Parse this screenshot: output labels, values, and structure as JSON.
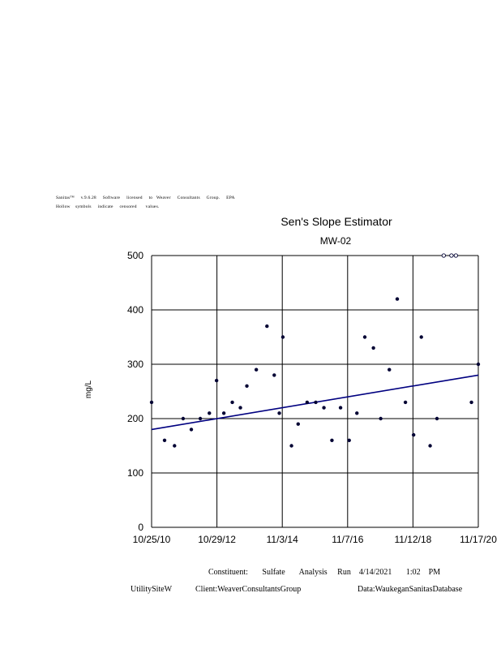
{
  "header": {
    "line1": "Sanitas™     v.9.6.28     Software     licensed     to   Weaver     Consultants     Group.     EPA",
    "line2": "Hollow    symbols     indicate     censored       values."
  },
  "footer": {
    "line1": "Constituent:       Sulfate       Analysis     Run    4/14/2021       1:02    PM",
    "site": "UtilitySiteW",
    "client": "Client:WeaverConsultantsGroup",
    "data": "Data:WaukeganSanitasDatabase"
  },
  "chart_data": {
    "type": "scatter",
    "title": "Sen's Slope Estimator",
    "subtitle": "MW-02",
    "xlabel": "",
    "ylabel": "mg/L",
    "xlim": [
      "2010-10-25",
      "2020-11-17"
    ],
    "ylim": [
      0,
      500
    ],
    "x_ticks": [
      "10/25/10",
      "10/29/12",
      "11/3/14",
      "11/7/16",
      "11/12/18",
      "11/17/20"
    ],
    "y_ticks": [
      0,
      100,
      200,
      300,
      400,
      500
    ],
    "grid": true,
    "colors": {
      "points": "#000033",
      "trend": "#000080",
      "grid": "#000000"
    },
    "series": [
      {
        "points": [
          {
            "x": "2010-10-25",
            "y": 230
          },
          {
            "x": "2011-03-20",
            "y": 160
          },
          {
            "x": "2011-07-10",
            "y": 150
          },
          {
            "x": "2011-10-15",
            "y": 200
          },
          {
            "x": "2012-01-15",
            "y": 180
          },
          {
            "x": "2012-04-25",
            "y": 200
          },
          {
            "x": "2012-08-05",
            "y": 210
          },
          {
            "x": "2012-10-25",
            "y": 270
          },
          {
            "x": "2013-01-15",
            "y": 210
          },
          {
            "x": "2013-04-20",
            "y": 230
          },
          {
            "x": "2013-07-20",
            "y": 220
          },
          {
            "x": "2013-10-01",
            "y": 260
          },
          {
            "x": "2014-01-15",
            "y": 290
          },
          {
            "x": "2014-05-15",
            "y": 370
          },
          {
            "x": "2014-08-05",
            "y": 280
          },
          {
            "x": "2014-10-01",
            "y": 210
          },
          {
            "x": "2014-11-10",
            "y": 350
          },
          {
            "x": "2015-02-15",
            "y": 150
          },
          {
            "x": "2015-05-01",
            "y": 190
          },
          {
            "x": "2015-08-10",
            "y": 230
          },
          {
            "x": "2015-11-15",
            "y": 230
          },
          {
            "x": "2016-02-15",
            "y": 220
          },
          {
            "x": "2016-05-15",
            "y": 160
          },
          {
            "x": "2016-08-20",
            "y": 220
          },
          {
            "x": "2016-11-25",
            "y": 160
          },
          {
            "x": "2017-02-20",
            "y": 210
          },
          {
            "x": "2017-05-20",
            "y": 350
          },
          {
            "x": "2017-08-25",
            "y": 330
          },
          {
            "x": "2017-11-15",
            "y": 200
          },
          {
            "x": "2018-02-20",
            "y": 290
          },
          {
            "x": "2018-05-20",
            "y": 420
          },
          {
            "x": "2018-08-20",
            "y": 230
          },
          {
            "x": "2018-11-20",
            "y": 170
          },
          {
            "x": "2019-02-15",
            "y": 350
          },
          {
            "x": "2019-05-25",
            "y": 150
          },
          {
            "x": "2019-08-10",
            "y": 200
          },
          {
            "x": "2020-09-01",
            "y": 230
          },
          {
            "x": "2020-11-17",
            "y": 300
          }
        ],
        "censored": [
          {
            "x": "2019-10-25",
            "y": 500
          },
          {
            "x": "2020-01-20",
            "y": 500
          },
          {
            "x": "2020-03-10",
            "y": 500
          }
        ]
      }
    ],
    "trend_line": {
      "x": [
        "2010-10-25",
        "2020-11-17"
      ],
      "y": [
        180,
        280
      ]
    }
  }
}
